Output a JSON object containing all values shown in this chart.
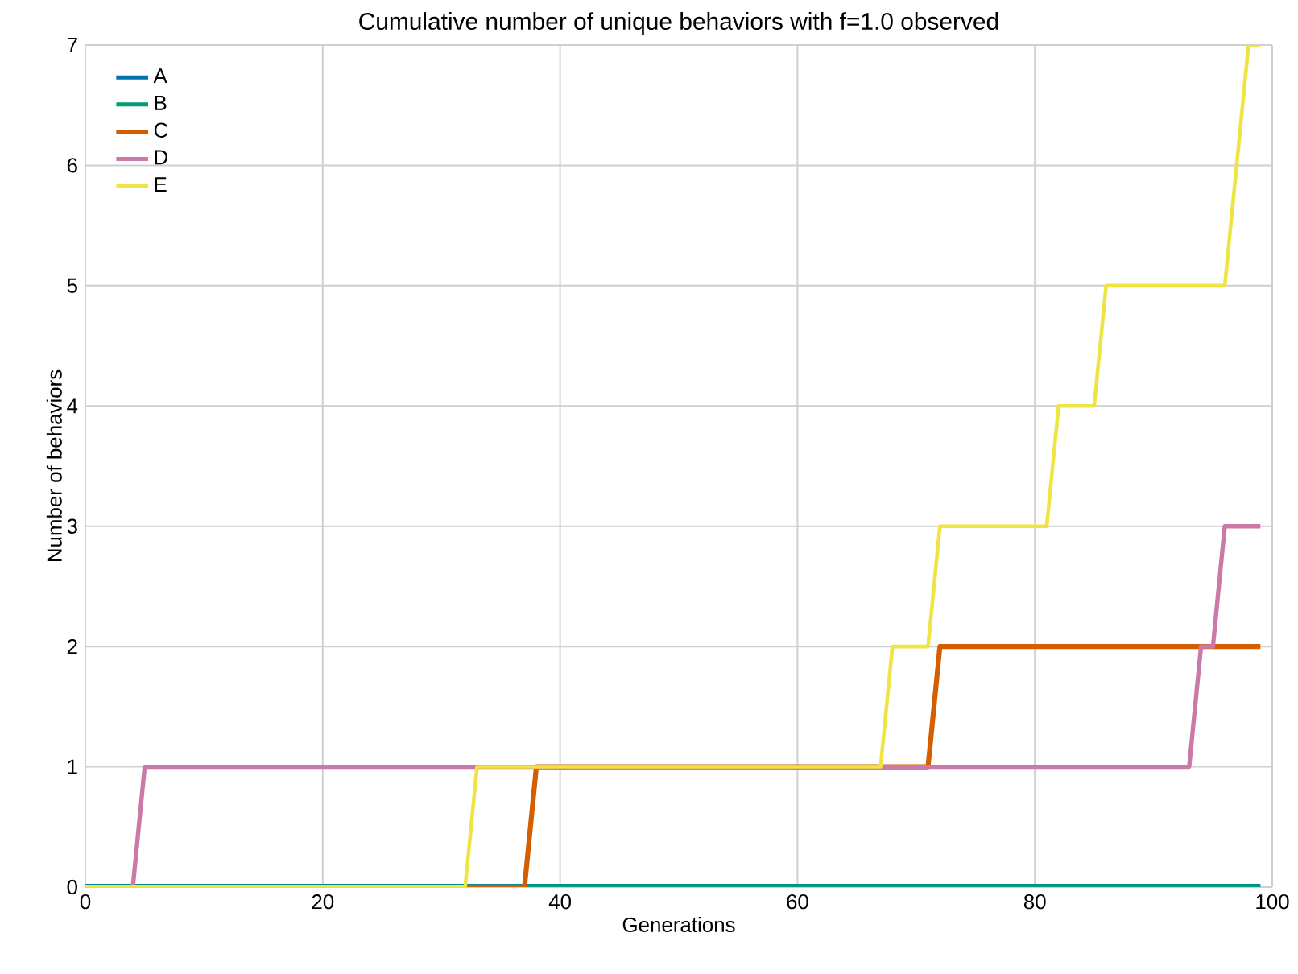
{
  "chart_data": {
    "type": "line",
    "title": "Cumulative number of unique behaviors with f=1.0 observed",
    "xlabel": "Generations",
    "ylabel": "Number of behaviors",
    "xlim": [
      0,
      100
    ],
    "ylim": [
      0,
      7
    ],
    "xticks": [
      0,
      20,
      40,
      60,
      80,
      100
    ],
    "yticks": [
      0,
      1,
      2,
      3,
      4,
      5,
      6,
      7
    ],
    "grid": true,
    "legend": "top left",
    "line_style": "solid",
    "marker": "none",
    "series": [
      {
        "name": "A",
        "color": "#0072b2",
        "x": [
          0,
          99
        ],
        "values": [
          0,
          0
        ]
      },
      {
        "name": "B",
        "color": "#009e73",
        "x": [
          0,
          99
        ],
        "values": [
          0,
          0
        ]
      },
      {
        "name": "C",
        "color": "#d55e00",
        "x": [
          0,
          37,
          38,
          71,
          72,
          99
        ],
        "values": [
          0,
          0,
          1,
          1,
          2,
          2
        ]
      },
      {
        "name": "D",
        "color": "#cc79a7",
        "x": [
          0,
          4,
          5,
          93,
          94,
          95,
          96,
          99
        ],
        "values": [
          0,
          0,
          1,
          1,
          2,
          2,
          3,
          3
        ]
      },
      {
        "name": "E",
        "color": "#f0e442",
        "x": [
          0,
          32,
          33,
          67,
          68,
          71,
          72,
          81,
          82,
          85,
          86,
          96,
          97,
          98,
          99
        ],
        "values": [
          0,
          0,
          1,
          1,
          2,
          2,
          3,
          3,
          4,
          4,
          5,
          5,
          6,
          7,
          7
        ]
      }
    ]
  }
}
